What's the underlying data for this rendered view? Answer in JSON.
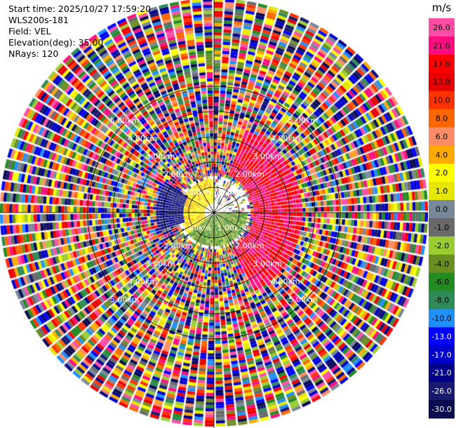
{
  "header": {
    "start_time": "Start time: 2025/10/27 17:59:20",
    "site": "WLS200s-181",
    "field": "Field: VEL",
    "elevation": "Elevation(deg): 35.00",
    "nrays": "NRays: 120"
  },
  "colorbar": {
    "unit": "m/s",
    "ticks": [
      "26.0",
      "21.0",
      "17.0",
      "13.0",
      "10.0",
      "8.0",
      "6.0",
      "4.0",
      "2.0",
      "1.0",
      "0.0",
      "-1.0",
      "-2.0",
      "-4.0",
      "-6.0",
      "-8.0",
      "-10.0",
      "-13.0",
      "-17.0",
      "-21.0",
      "-26.0",
      "-30.0"
    ],
    "colors": [
      "#ff4da6",
      "#ff0d80",
      "#ff0000",
      "#e60000",
      "#ff3300",
      "#ff6600",
      "#ff8c66",
      "#ffaa00",
      "#ffff00",
      "#e6e600",
      "#778899",
      "#696969",
      "#9acd32",
      "#6b8e23",
      "#228b22",
      "#2e8b57",
      "#1e90ff",
      "#0000ff",
      "#0000cd",
      "#00008b",
      "#191970",
      "#0a0a50"
    ]
  },
  "chart_data": {
    "type": "heatmap",
    "title": "",
    "field": "VEL",
    "unit": "m/s",
    "nrays": 120,
    "elevation_deg": 35.0,
    "range_rings_km": [
      1.0,
      2.0,
      3.0,
      4.0,
      5.0
    ],
    "ring_labels": [
      "1.00km",
      "2.00km",
      "3.00km",
      "4.00km",
      "5.00km"
    ],
    "grid": true,
    "value_range": [
      -30.0,
      26.0
    ],
    "regions": [
      {
        "description": "near-range positive (yellow)",
        "azimuth_deg": [
          230,
          360
        ],
        "range_km": [
          0.3,
          1.3
        ],
        "value": 3.0
      },
      {
        "description": "near-range negative (olive/green)",
        "azimuth_deg": [
          90,
          230
        ],
        "range_km": [
          0.1,
          1.3
        ],
        "value": -3.0
      },
      {
        "description": "receding band (pink/red)",
        "azimuth_deg": [
          20,
          150
        ],
        "range_km": [
          1.5,
          3.5
        ],
        "value": 21.0
      },
      {
        "description": "approaching band (navy/grey)",
        "azimuth_deg": [
          250,
          300
        ],
        "range_km": [
          1.2,
          2.2
        ],
        "value": -21.0
      }
    ]
  }
}
